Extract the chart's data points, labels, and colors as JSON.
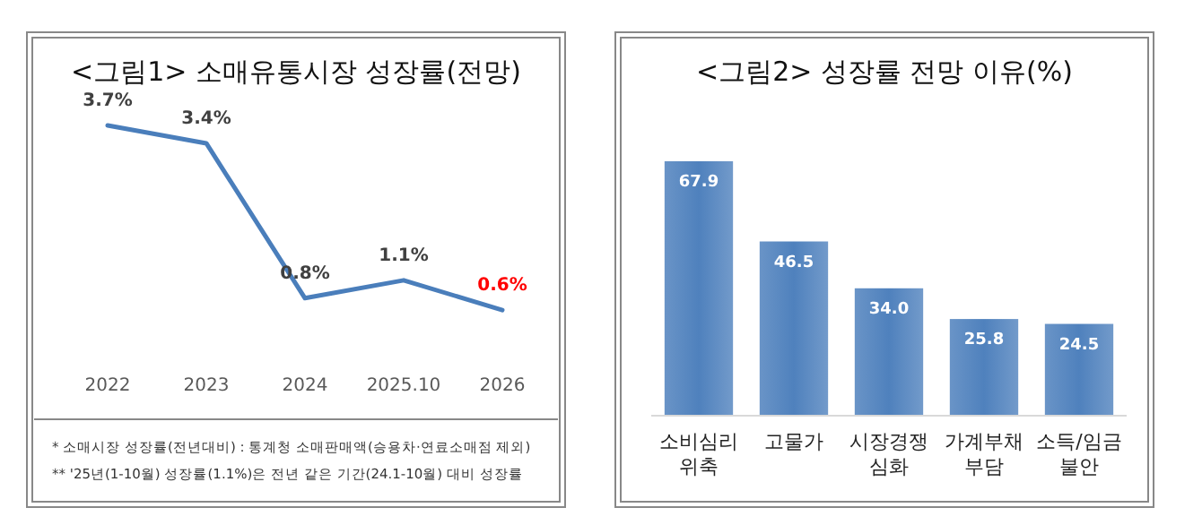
{
  "chart_data": [
    {
      "type": "line",
      "title": "<그림1> 소매유통시장 성장률(전망)",
      "categories": [
        "2022",
        "2023",
        "2024",
        "2025.10",
        "2026"
      ],
      "series": [
        {
          "color": "#4a7ebb",
          "values": [
            3.7,
            3.4,
            0.8,
            1.1,
            0.6
          ],
          "value_labels": [
            "3.7%",
            "3.4%",
            "0.8%",
            "1.1%",
            "0.6%"
          ]
        }
      ],
      "marker": "none",
      "annotations": [
        "* 소매시장 성장률(전년대비) : 통계청 소매판매액(승용차·연료소매점 제외)",
        "** '25년(1-10월) 성장률(1.1%)은 전년 같은 기간(24.1-10월) 대비 성장률"
      ]
    },
    {
      "type": "bar",
      "title": "<그림2> 성장률 전망 이유(%)",
      "categories": [
        "소비심리\n위축",
        "고물가",
        "시장경쟁\n심화",
        "가계부채\n부담",
        "소득/임금\n불안"
      ],
      "values": [
        67.9,
        46.5,
        34.0,
        25.8,
        24.5
      ],
      "value_labels": [
        "67.9",
        "46.5",
        "34.0",
        "25.8",
        "24.5"
      ],
      "color": "#4f81bd"
    }
  ]
}
